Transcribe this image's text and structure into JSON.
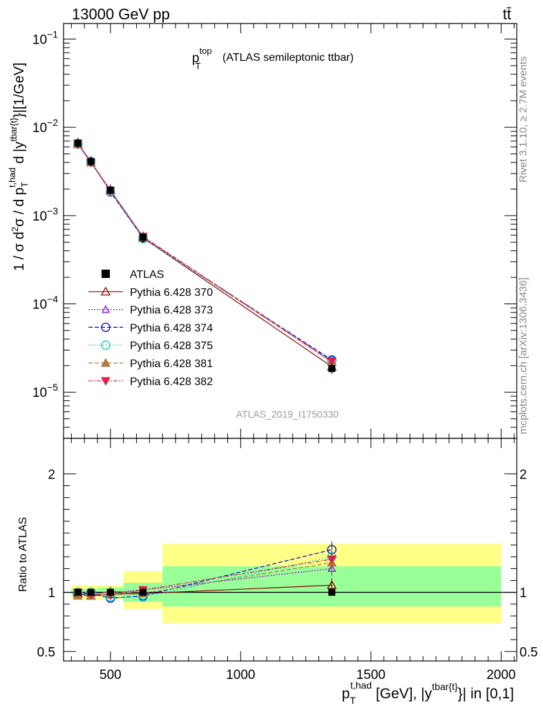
{
  "header": {
    "left": "13000 GeV pp",
    "right": "tt̄"
  },
  "title": {
    "main": "p",
    "sup": "top",
    "sub": "T",
    "rest": "(ATLAS semileptonic ttbar)"
  },
  "side_labels": {
    "rivet": "Rivet 3.1.10, ≥ 2.7M events",
    "mcplots": "mcplots.cern.ch [arXiv:1306.3436]"
  },
  "watermark": "ATLAS_2019_I1750330",
  "axes": {
    "ylabel_main": "1 / σ d²σ / d p_T^{t,had} d |y^{tbar{t}}|[1/GeV]",
    "ylabel_ratio": "Ratio to ATLAS",
    "xlabel": "p_T^{t,had} [GeV], |y^{tbar{t}}| in [0,1]",
    "xlim": [
      320,
      2060
    ],
    "ylim_main": [
      3e-06,
      0.15
    ],
    "ylim_ratio": [
      0.42,
      2.3
    ],
    "xticks": [
      500,
      1000,
      1500,
      2000
    ],
    "ratio_ticks": [
      0.5,
      1,
      2
    ],
    "ymain_ticks": [
      {
        "e": -5,
        "label": "10^-5"
      },
      {
        "e": -4,
        "label": "10^-4"
      },
      {
        "e": -3,
        "label": "10^-3"
      },
      {
        "e": -2,
        "label": "10^-2"
      },
      {
        "e": -1,
        "label": "10^-1"
      }
    ]
  },
  "chart_data": {
    "type": "line",
    "x": [
      375,
      425,
      500,
      625,
      1350
    ],
    "bins": [
      [
        350,
        400
      ],
      [
        400,
        450
      ],
      [
        450,
        550
      ],
      [
        550,
        700
      ],
      [
        700,
        2000
      ]
    ],
    "data": {
      "name": "ATLAS",
      "values": [
        0.0066,
        0.0041,
        0.00195,
        0.00057,
        1.85e-05
      ],
      "band_inner": [
        [
          0.97,
          1.03
        ],
        [
          0.97,
          1.03
        ],
        [
          0.97,
          1.04
        ],
        [
          0.92,
          1.08
        ],
        [
          0.88,
          1.22
        ]
      ],
      "band_outer": [
        [
          0.94,
          1.06
        ],
        [
          0.94,
          1.06
        ],
        [
          0.94,
          1.06
        ],
        [
          0.86,
          1.18
        ],
        [
          0.74,
          1.41
        ]
      ]
    },
    "series": [
      {
        "name": "Pythia 6.428 370",
        "color": "#8b0000",
        "dash": "",
        "marker": "triangle-open",
        "values": [
          0.0065,
          0.004,
          0.00192,
          0.00056,
          1.95e-05
        ],
        "ratio": [
          0.99,
          0.97,
          0.985,
          0.99,
          1.06
        ],
        "ratio_err": [
          0.02,
          0.02,
          0.02,
          0.03,
          0.06
        ]
      },
      {
        "name": "Pythia 6.428 373",
        "color": "#9400d3",
        "dash": "2,2",
        "marker": "triangle-open-small",
        "values": [
          0.0066,
          0.0041,
          0.00195,
          0.00058,
          2.2e-05
        ],
        "ratio": [
          1.0,
          0.99,
          1.0,
          1.02,
          1.2
        ],
        "ratio_err": [
          0.02,
          0.02,
          0.02,
          0.03,
          0.06
        ]
      },
      {
        "name": "Pythia 6.428 374",
        "color": "#0000dd",
        "dash": "6,3",
        "marker": "circle-open",
        "values": [
          0.0065,
          0.0041,
          0.00185,
          0.00056,
          2.32e-05
        ],
        "ratio": [
          0.99,
          0.99,
          0.95,
          0.97,
          1.36
        ],
        "ratio_err": [
          0.02,
          0.02,
          0.02,
          0.03,
          0.07
        ]
      },
      {
        "name": "Pythia 6.428 375",
        "color": "#00cccc",
        "dash": "2,3",
        "marker": "circle-open",
        "values": [
          0.0066,
          0.0041,
          0.00187,
          0.00055,
          2.26e-05
        ],
        "ratio": [
          1.0,
          1.0,
          0.96,
          0.96,
          1.3
        ],
        "ratio_err": [
          0.02,
          0.02,
          0.02,
          0.03,
          0.07
        ]
      },
      {
        "name": "Pythia 6.428 381",
        "color": "#b07a40",
        "dash": "6,3",
        "marker": "triangle-filled",
        "values": [
          0.0064,
          0.004,
          0.00195,
          0.00057,
          2.2e-05
        ],
        "ratio": [
          0.97,
          0.97,
          1.01,
          0.99,
          1.25
        ],
        "ratio_err": [
          0.02,
          0.02,
          0.02,
          0.03,
          0.07
        ]
      },
      {
        "name": "Pythia 6.428 382",
        "color": "#e0204a",
        "dash": "6,2,2,2",
        "marker": "triangle-down-filled",
        "values": [
          0.0066,
          0.004,
          0.0019,
          0.00058,
          2.25e-05
        ],
        "ratio": [
          1.0,
          0.98,
          0.98,
          1.02,
          1.28
        ],
        "ratio_err": [
          0.02,
          0.02,
          0.02,
          0.03,
          0.07
        ]
      }
    ]
  }
}
